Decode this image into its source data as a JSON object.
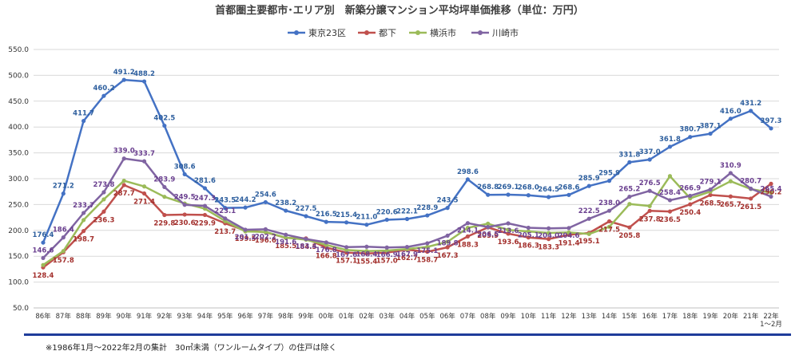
{
  "chart_data": {
    "type": "line",
    "title": "首都圏主要都市･エリア別　新築分譲マンション平均坪単価推移（単位：万円）",
    "x": [
      "86年",
      "87年",
      "88年",
      "89年",
      "90年",
      "91年",
      "92年",
      "93年",
      "94年",
      "95年",
      "96年",
      "97年",
      "98年",
      "99年",
      "00年",
      "01年",
      "02年",
      "03年",
      "04年",
      "05年",
      "06年",
      "07年",
      "08年",
      "09年",
      "10年",
      "11年",
      "12年",
      "13年",
      "14年",
      "15年",
      "16年",
      "17年",
      "18年",
      "19年",
      "20年",
      "21年",
      "22年\n1～2月"
    ],
    "ylim": [
      50,
      550
    ],
    "yticks": [
      "50.0",
      "100.0",
      "150.0",
      "200.0",
      "250.0",
      "300.0",
      "350.0",
      "400.0",
      "450.0",
      "500.0",
      "550.0"
    ],
    "grid": true,
    "legend_position": "top",
    "series": [
      {
        "name": "東京23区",
        "color": "#4472c4",
        "label_color": "#2e5f9e",
        "values": [
          176.4,
          271.2,
          411.7,
          460.2,
          491.2,
          488.2,
          402.5,
          308.6,
          281.6,
          243.5,
          244.2,
          254.6,
          238.2,
          227.5,
          216.5,
          215.4,
          211.0,
          220.6,
          222.1,
          228.9,
          243.5,
          298.6,
          268.8,
          269.1,
          268.0,
          264.5,
          268.6,
          285.9,
          295.9,
          331.8,
          337.0,
          361.8,
          380.7,
          387.1,
          416.0,
          431.2,
          397.3
        ]
      },
      {
        "name": "都下",
        "color": "#c0504d",
        "label_color": "#a3302d",
        "values": [
          128.4,
          157.8,
          198.7,
          236.3,
          287.7,
          271.4,
          229.8,
          230.6,
          229.9,
          213.7,
          199.5,
          196.6,
          185.5,
          184.5,
          166.8,
          157.1,
          155.4,
          157.0,
          162.7,
          158.7,
          167.3,
          188.3,
          205.9,
          193.6,
          186.3,
          183.3,
          191.4,
          195.1,
          217.5,
          205.8,
          237.8,
          236.5,
          250.4,
          268.5,
          265.7,
          261.5,
          290.2
        ]
      },
      {
        "name": "横浜市",
        "color": "#9bbb59",
        "label_color": "#6d8f33",
        "values": [
          133,
          160,
          220,
          260,
          296,
          285,
          265,
          252,
          242,
          218,
          198,
          197,
          186,
          182,
          172,
          162,
          160,
          161,
          164,
          168,
          178,
          205,
          213,
          201,
          198,
          195,
          196,
          193,
          207,
          251,
          247,
          305,
          262,
          275,
          295,
          280,
          273
        ]
      },
      {
        "name": "川崎市",
        "color": "#8064a2",
        "label_color": "#6a3f8f",
        "values": [
          146.6,
          186.4,
          233.7,
          273.8,
          339.0,
          333.7,
          283.9,
          249.5,
          247.3,
          223.1,
          201.2,
          202.2,
          191.6,
          183.4,
          176.8,
          167.6,
          168.4,
          166.9,
          167.9,
          175.1,
          189.8,
          214.1,
          206.5,
          213.6,
          205.1,
          204.0,
          204.6,
          222.5,
          238.0,
          265.2,
          276.5,
          258.4,
          266.9,
          279.1,
          310.9,
          280.7,
          265.4
        ]
      }
    ],
    "data_labels": {
      "東京23区": [
        "176.4",
        "271.2",
        "411.7",
        "460.2",
        "491.2",
        "488.2",
        "402.5",
        "308.6",
        "281.6",
        "243.5",
        "244.2",
        "254.6",
        "238.2",
        "227.5",
        "216.5",
        "215.4",
        "211.0",
        "220.6",
        "222.1",
        "228.9",
        "243.5",
        "298.6",
        "268.8",
        "269.1",
        "268.0",
        "264.5",
        "268.6",
        "285.9",
        "295.9",
        "331.8",
        "337.0",
        "361.8",
        "380.7",
        "387.1",
        "416.0",
        "431.2",
        "397.3"
      ],
      "都下": [
        "128.4",
        "157.8",
        "198.7",
        "236.3",
        "287.7",
        "271.4",
        "229.8",
        "230.6",
        "229.9",
        "213.7",
        "199.5",
        "196.6",
        "185.5",
        "184.5",
        "166.8",
        "157.1",
        "155.4",
        "157.0",
        "162.7",
        "158.7",
        "167.3",
        "188.3",
        "205.9",
        "193.6",
        "186.3",
        "183.3",
        "191.4",
        "195.1",
        "217.5",
        "205.8",
        "237.8",
        "236.5",
        "250.4",
        "268.5",
        "265.7",
        "261.5",
        "290.2"
      ],
      "川崎市": [
        "146.6",
        "186.4",
        "233.7",
        "273.8",
        "339.0",
        "333.7",
        "283.9",
        "249.5",
        "247.3",
        "223.1",
        "201.2",
        "202.2",
        "191.6",
        "183.4",
        "176.8",
        "167.6",
        "168.4",
        "166.9",
        "167.9",
        "175.1",
        "189.8",
        "214.1",
        "206.5",
        "213.6",
        "205.1",
        "204.0",
        "204.6",
        "222.5",
        "238.0",
        "265.2",
        "276.5",
        "258.4",
        "266.9",
        "279.1",
        "310.9",
        "280.7",
        "265.4"
      ]
    }
  },
  "footnote": "※1986年1月～2022年2月の集計　30㎡未満（ワンルームタイプ）の住戸は除く"
}
